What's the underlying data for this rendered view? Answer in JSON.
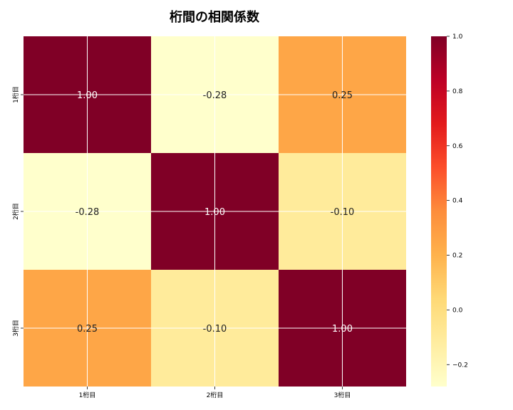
{
  "chart_data": {
    "type": "heatmap",
    "title": "桁間の相関係数",
    "x_categories": [
      "1桁目",
      "2桁目",
      "3桁目"
    ],
    "y_categories": [
      "1桁目",
      "2桁目",
      "3桁目"
    ],
    "matrix": [
      [
        1.0,
        -0.28,
        0.25
      ],
      [
        -0.28,
        1.0,
        -0.1
      ],
      [
        0.25,
        -0.1,
        1.0
      ]
    ],
    "cell_labels": [
      [
        "1.00",
        "-0.28",
        "0.25"
      ],
      [
        "-0.28",
        "1.00",
        "-0.10"
      ],
      [
        "0.25",
        "-0.10",
        "1.00"
      ]
    ],
    "colormap": "YlOrRd",
    "colorbar": {
      "range": [
        -0.28,
        1.0
      ],
      "ticks": [
        -0.2,
        0.0,
        0.2,
        0.4,
        0.6,
        0.8,
        1.0
      ],
      "tick_labels": [
        "−0.2",
        "0.0",
        "0.2",
        "0.4",
        "0.6",
        "0.8",
        "1.0"
      ]
    },
    "grid": true,
    "grid_color": "#ffffff"
  }
}
